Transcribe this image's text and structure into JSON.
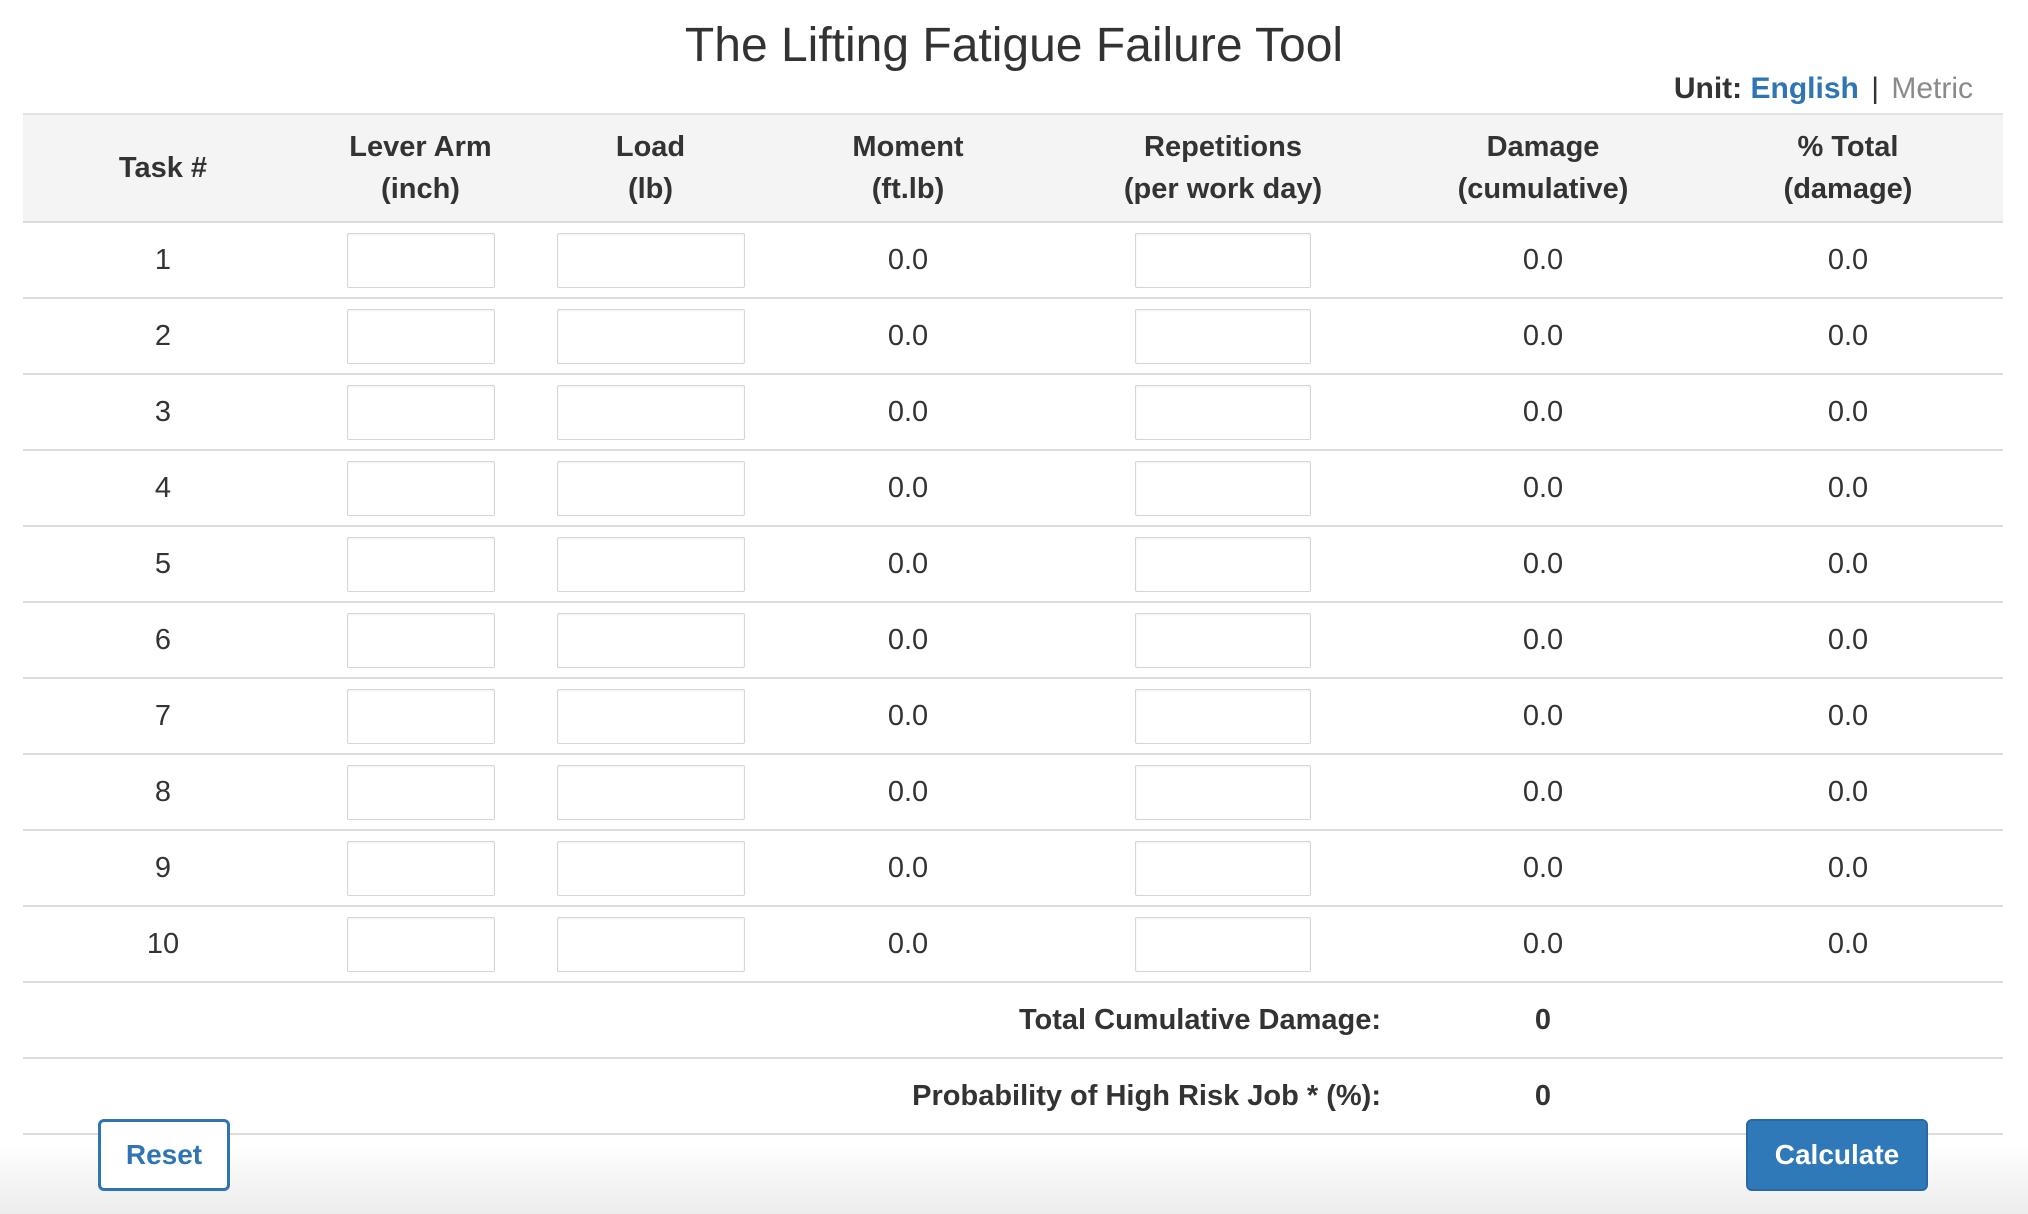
{
  "header": {
    "title": "The Lifting Fatigue Failure Tool",
    "unit_label": "Unit:",
    "unit_active": "English",
    "unit_separator": "|",
    "unit_other": "Metric"
  },
  "table": {
    "columns": [
      {
        "line1": "Task #",
        "line2": ""
      },
      {
        "line1": "Lever Arm",
        "line2": "(inch)"
      },
      {
        "line1": "Load",
        "line2": "(lb)"
      },
      {
        "line1": "Moment",
        "line2": "(ft.lb)"
      },
      {
        "line1": "Repetitions",
        "line2": "(per work day)"
      },
      {
        "line1": "Damage",
        "line2": "(cumulative)"
      },
      {
        "line1": "% Total",
        "line2": "(damage)"
      }
    ],
    "rows": [
      {
        "task": "1",
        "lever_arm": "",
        "load": "",
        "moment": "0.0",
        "repetitions": "",
        "damage": "0.0",
        "pct_total": "0.0"
      },
      {
        "task": "2",
        "lever_arm": "",
        "load": "",
        "moment": "0.0",
        "repetitions": "",
        "damage": "0.0",
        "pct_total": "0.0"
      },
      {
        "task": "3",
        "lever_arm": "",
        "load": "",
        "moment": "0.0",
        "repetitions": "",
        "damage": "0.0",
        "pct_total": "0.0"
      },
      {
        "task": "4",
        "lever_arm": "",
        "load": "",
        "moment": "0.0",
        "repetitions": "",
        "damage": "0.0",
        "pct_total": "0.0"
      },
      {
        "task": "5",
        "lever_arm": "",
        "load": "",
        "moment": "0.0",
        "repetitions": "",
        "damage": "0.0",
        "pct_total": "0.0"
      },
      {
        "task": "6",
        "lever_arm": "",
        "load": "",
        "moment": "0.0",
        "repetitions": "",
        "damage": "0.0",
        "pct_total": "0.0"
      },
      {
        "task": "7",
        "lever_arm": "",
        "load": "",
        "moment": "0.0",
        "repetitions": "",
        "damage": "0.0",
        "pct_total": "0.0"
      },
      {
        "task": "8",
        "lever_arm": "",
        "load": "",
        "moment": "0.0",
        "repetitions": "",
        "damage": "0.0",
        "pct_total": "0.0"
      },
      {
        "task": "9",
        "lever_arm": "",
        "load": "",
        "moment": "0.0",
        "repetitions": "",
        "damage": "0.0",
        "pct_total": "0.0"
      },
      {
        "task": "10",
        "lever_arm": "",
        "load": "",
        "moment": "0.0",
        "repetitions": "",
        "damage": "0.0",
        "pct_total": "0.0"
      }
    ]
  },
  "summary": {
    "total_damage_label": "Total Cumulative Damage:",
    "total_damage_value": "0",
    "probability_label": "Probability of High Risk Job * (%):",
    "probability_value": "0"
  },
  "actions": {
    "reset_label": "Reset",
    "calculate_label": "Calculate"
  },
  "colors": {
    "accent": "#2f75b5",
    "header_bg": "#f4f4f4",
    "inactive_unit": "#8a8a8a"
  }
}
